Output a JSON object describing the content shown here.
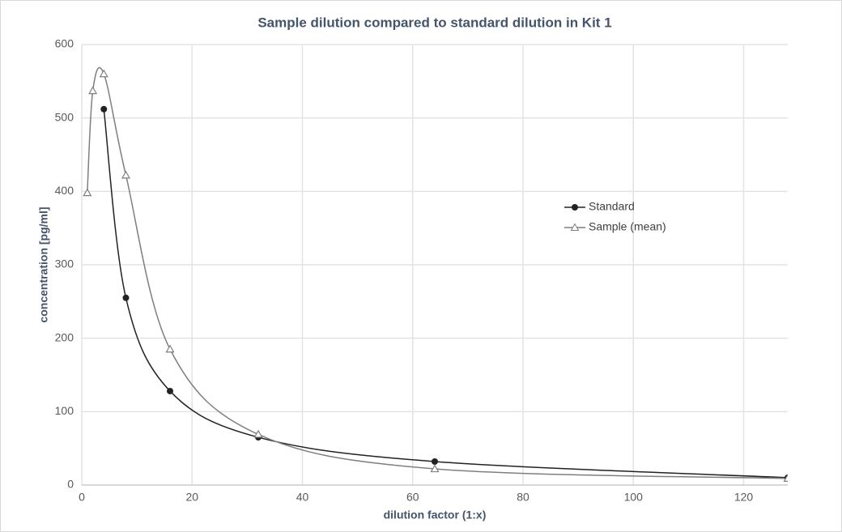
{
  "chart_data": {
    "type": "line",
    "title": "Sample dilution compared to standard dilution in Kit 1",
    "x_label": "dilution factor (1:x)",
    "y_label": "concentration  [pg/ml]",
    "xlim": [
      0,
      128
    ],
    "xticks": [
      0,
      20,
      40,
      60,
      80,
      100,
      120
    ],
    "ylim": [
      0,
      600
    ],
    "yticks": [
      0,
      100,
      200,
      300,
      400,
      500,
      600
    ],
    "grid": true,
    "smooth": true,
    "legend_position": "right",
    "series": [
      {
        "name": "Standard",
        "color": "#222222",
        "marker": "circle",
        "x": [
          4,
          8,
          16,
          32,
          64,
          128
        ],
        "values": [
          512,
          255,
          128,
          65,
          32,
          10
        ]
      },
      {
        "name": "Sample (mean)",
        "color": "#7f7f7f",
        "marker": "triangle",
        "x": [
          1,
          2,
          4,
          8,
          16,
          32,
          64,
          128
        ],
        "values": [
          398,
          537,
          560,
          422,
          185,
          69,
          22,
          9
        ]
      }
    ]
  }
}
